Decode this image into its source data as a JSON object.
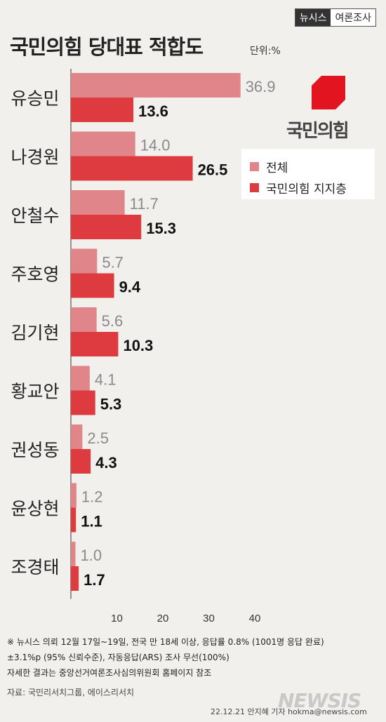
{
  "header": {
    "brand": "뉴시스",
    "section": "여론조사"
  },
  "title": "국민의힘 당대표 적합도",
  "unit": "단위:%",
  "logo": {
    "text": "국민의힘"
  },
  "colors": {
    "overall": "#e0868a",
    "supporters": "#de3b40",
    "logo_red": "#e1141f"
  },
  "chart_data": {
    "type": "bar",
    "orientation": "horizontal",
    "categories": [
      "유승민",
      "나경원",
      "안철수",
      "주호영",
      "김기현",
      "황교안",
      "권성동",
      "윤상현",
      "조경태"
    ],
    "series": [
      {
        "name": "전체",
        "values": [
          36.9,
          14.0,
          11.7,
          5.7,
          5.6,
          4.1,
          2.5,
          1.2,
          1.0
        ]
      },
      {
        "name": "국민의힘 지지층",
        "values": [
          13.6,
          26.5,
          15.3,
          9.4,
          10.3,
          5.3,
          4.3,
          1.1,
          1.7
        ]
      }
    ],
    "value_labels": [
      [
        "36.9",
        "14.0",
        "11.7",
        "5.7",
        "5.6",
        "4.1",
        "2.5",
        "1.2",
        "1.0"
      ],
      [
        "13.6",
        "26.5",
        "15.3",
        "9.4",
        "10.3",
        "5.3",
        "4.3",
        "1.1",
        "1.7"
      ]
    ],
    "xticks": [
      "10",
      "20",
      "30",
      "40"
    ],
    "xtick_values": [
      10,
      20,
      30,
      40
    ],
    "xlim": [
      0,
      46
    ],
    "grid": false,
    "legend_position": "right"
  },
  "footnotes": [
    "※ 뉴시스 의뢰 12월 17일~19일, 전국 만 18세 이상, 응답률 0.8% (1001명 응답 완료)",
    "±3.1%p (95% 신뢰수준), 자동응답(ARS) 조사 무선(100%)",
    "자세한 결과는 중앙선거여론조사심의위원회 홈페이지 참조",
    "자료: 국민리서치그룹, 에이스리서치"
  ],
  "credit": "22.12.21 안지혜 기자 hokma@newsis.com",
  "watermark": "NEWSIS"
}
